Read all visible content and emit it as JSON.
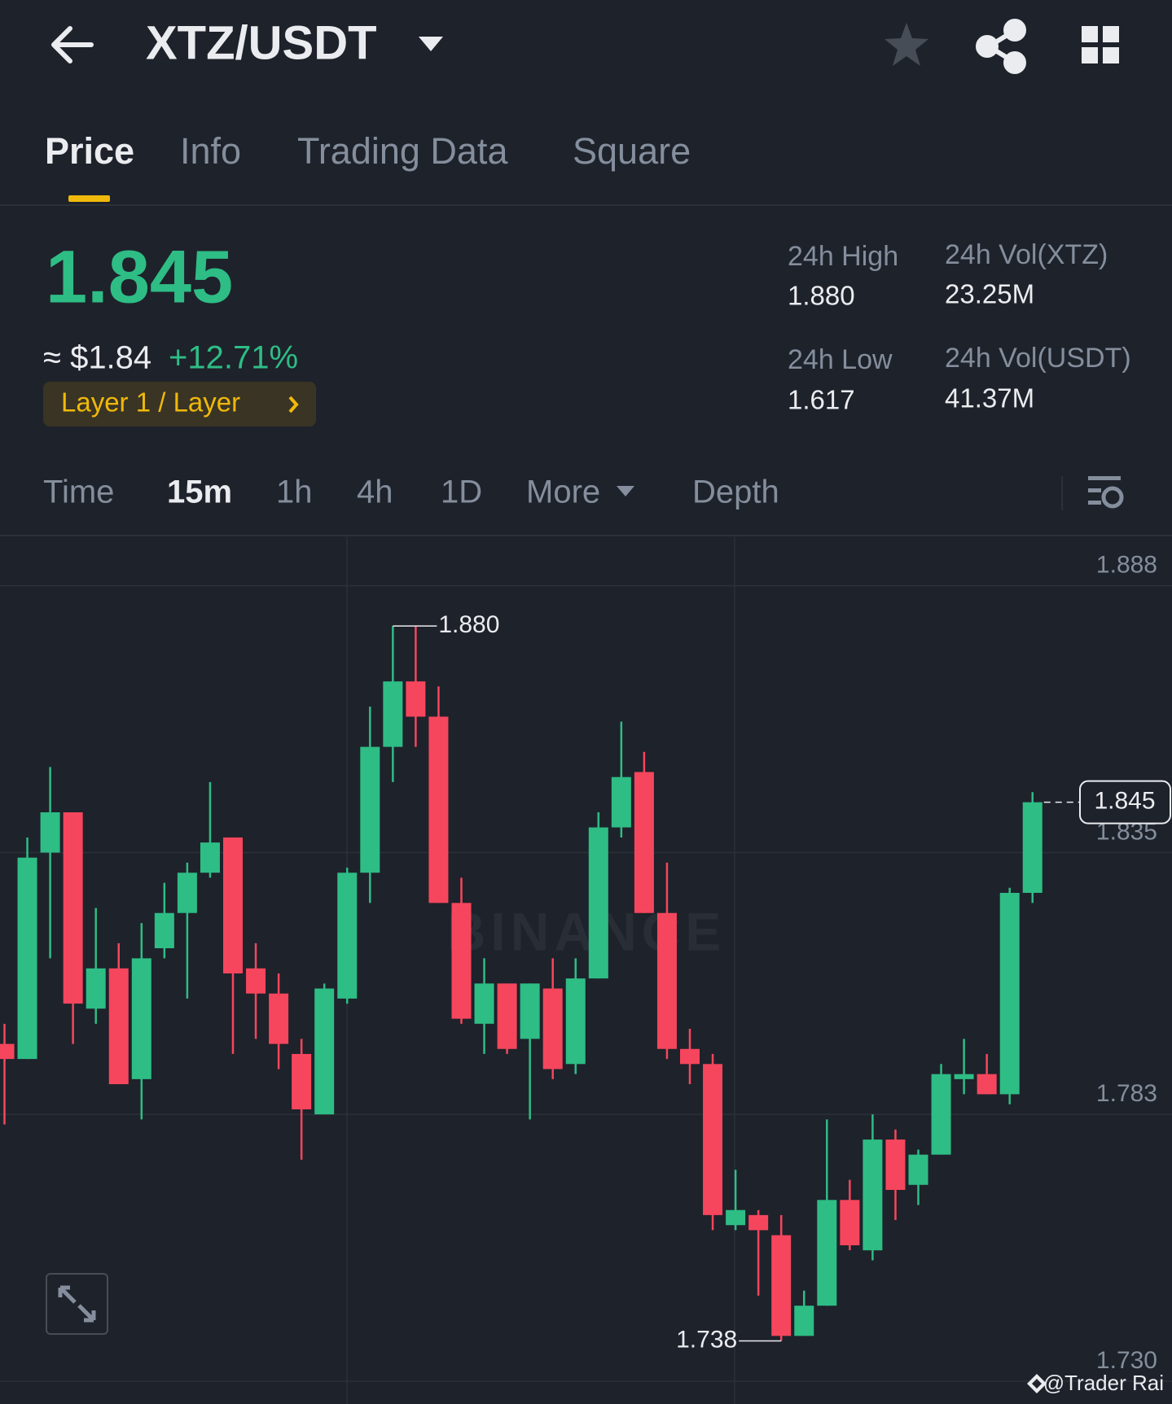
{
  "header": {
    "pair": "XTZ/USDT"
  },
  "tabs": [
    "Price",
    "Info",
    "Trading Data",
    "Square"
  ],
  "ticker": {
    "last": "1.845",
    "usd": "≈ $1.84",
    "change": "+12.71%",
    "tag": "Layer 1 / Layer",
    "stats": [
      {
        "label": "24h High",
        "value": "1.880"
      },
      {
        "label": "24h Vol(XTZ)",
        "value": "23.25M"
      },
      {
        "label": "24h Low",
        "value": "1.617"
      },
      {
        "label": "24h Vol(USDT)",
        "value": "41.37M"
      }
    ]
  },
  "intervals": [
    "Time",
    "15m",
    "1h",
    "4h",
    "1D",
    "More",
    "Depth"
  ],
  "chart_data": {
    "type": "candlestick",
    "up_color": "#2ebd85",
    "down_color": "#f6465d",
    "open": [
      1.797,
      1.794,
      1.835,
      1.843,
      1.804,
      1.812,
      1.79,
      1.816,
      1.823,
      1.831,
      1.838,
      1.812,
      1.807,
      1.795,
      1.783,
      1.806,
      1.831,
      1.856,
      1.869,
      1.862,
      1.825,
      1.801,
      1.809,
      1.798,
      1.808,
      1.793,
      1.81,
      1.84,
      1.851,
      1.823,
      1.796,
      1.793,
      1.761,
      1.763,
      1.759,
      1.739,
      1.745,
      1.766,
      1.756,
      1.778,
      1.769,
      1.775,
      1.79,
      1.791,
      1.787,
      1.827
    ],
    "high": [
      1.801,
      1.838,
      1.852,
      1.843,
      1.824,
      1.817,
      1.821,
      1.829,
      1.833,
      1.849,
      1.838,
      1.817,
      1.811,
      1.798,
      1.809,
      1.832,
      1.864,
      1.88,
      1.88,
      1.868,
      1.83,
      1.814,
      1.809,
      1.809,
      1.814,
      1.814,
      1.843,
      1.861,
      1.855,
      1.833,
      1.8,
      1.795,
      1.772,
      1.764,
      1.763,
      1.748,
      1.782,
      1.77,
      1.783,
      1.78,
      1.776,
      1.793,
      1.798,
      1.795,
      1.828,
      1.847
    ],
    "low": [
      1.781,
      1.794,
      1.814,
      1.797,
      1.801,
      1.789,
      1.782,
      1.814,
      1.806,
      1.83,
      1.795,
      1.798,
      1.792,
      1.774,
      1.783,
      1.805,
      1.825,
      1.849,
      1.856,
      1.825,
      1.801,
      1.795,
      1.795,
      1.782,
      1.79,
      1.791,
      1.81,
      1.838,
      1.823,
      1.794,
      1.789,
      1.76,
      1.76,
      1.747,
      1.738,
      1.739,
      1.745,
      1.756,
      1.754,
      1.762,
      1.765,
      1.775,
      1.787,
      1.787,
      1.785,
      1.825
    ],
    "close": [
      1.794,
      1.834,
      1.843,
      1.805,
      1.812,
      1.789,
      1.814,
      1.823,
      1.831,
      1.837,
      1.811,
      1.807,
      1.797,
      1.784,
      1.808,
      1.831,
      1.856,
      1.869,
      1.862,
      1.825,
      1.802,
      1.809,
      1.796,
      1.809,
      1.792,
      1.81,
      1.84,
      1.85,
      1.823,
      1.796,
      1.793,
      1.763,
      1.764,
      1.76,
      1.739,
      1.745,
      1.766,
      1.757,
      1.778,
      1.768,
      1.775,
      1.791,
      1.791,
      1.787,
      1.827,
      1.845
    ],
    "ylim": [
      1.73,
      1.897
    ],
    "yticks": [
      1.888,
      1.835,
      1.783,
      {
        "value": 1.73,
        "label": "1.730"
      }
    ],
    "grid": true,
    "max_label": {
      "value": 1.88,
      "label": "1.880"
    },
    "min_label": 1.738,
    "last_price": 1.845,
    "watermark": "BINANCE"
  },
  "credit": "@Trader Rai"
}
